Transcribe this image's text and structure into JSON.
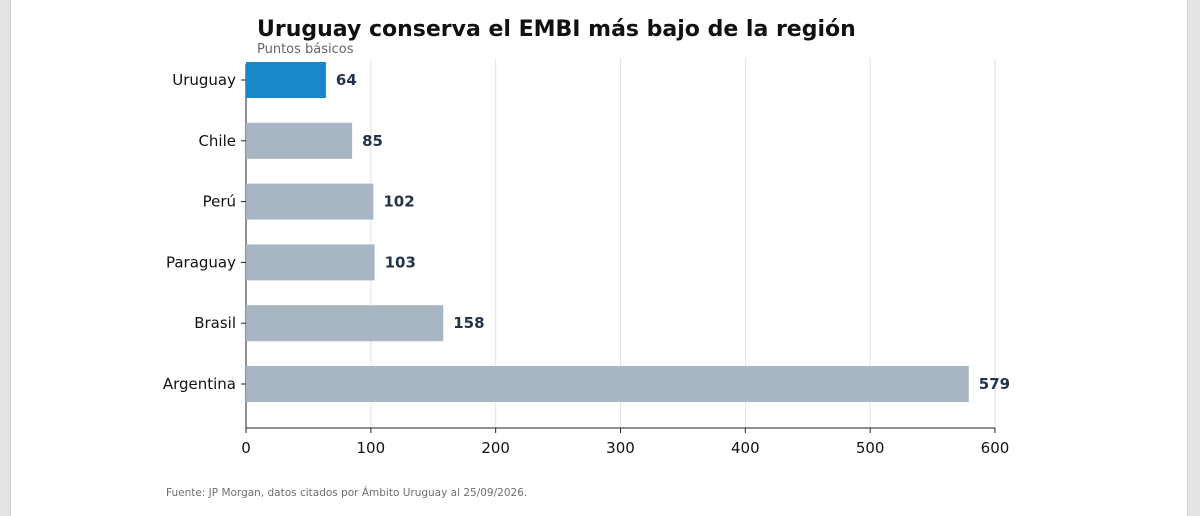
{
  "header": {
    "title": "Uruguay conserva el EMBI más bajo de la región",
    "subtitle": "Puntos básicos"
  },
  "footer": {
    "source": "Fuente: JP Morgan, datos citados por Ámbito Uruguay al 25/09/2026."
  },
  "colors": {
    "highlight": "#1a87c9",
    "bar": "#a8b6c4",
    "value_label": "#23344a",
    "grid": "#e2e2e2",
    "axis_text": "#111111"
  },
  "chart_data": {
    "type": "bar",
    "orientation": "horizontal",
    "title": "Uruguay conserva el EMBI más bajo de la región",
    "subtitle": "Puntos básicos",
    "categories": [
      "Uruguay",
      "Chile",
      "Perú",
      "Paraguay",
      "Brasil",
      "Argentina"
    ],
    "values": [
      64,
      85,
      102,
      103,
      158,
      579
    ],
    "highlight": "Uruguay",
    "xlim": [
      0,
      600
    ],
    "xticks": [
      0,
      100,
      200,
      300,
      400,
      500,
      600
    ],
    "grid": "vertical",
    "data_labels": true
  }
}
